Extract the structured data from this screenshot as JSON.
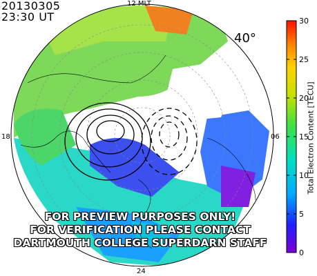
{
  "header": {
    "date": "20130305",
    "time": "23:30 UT",
    "latitude_label": "40°"
  },
  "mlt_labels": {
    "top": "12 MLT",
    "left": "18",
    "right": "06",
    "bottom": "24"
  },
  "watermark": {
    "line1": "FOR PREVIEW PURPOSES ONLY!",
    "line2": "FOR VERIFICATION PLEASE CONTACT",
    "line3": "DARTMOUTH COLLEGE SUPERDARN STAFF"
  },
  "chart_data": {
    "type": "heatmap",
    "projection": "polar",
    "colorbar": {
      "label": "Total Electron Content [TECU]",
      "range": [
        0,
        30
      ],
      "ticks": [
        0,
        5,
        10,
        15,
        20,
        25,
        30
      ],
      "colormap": [
        "#7b00d4",
        "#2020ff",
        "#00a8ff",
        "#00e0c0",
        "#40e040",
        "#c8e000",
        "#ffd000",
        "#ff8000",
        "#ff1000"
      ]
    },
    "magnetic_latitude_ring": 40,
    "mlt_ticks": [
      "12",
      "18",
      "06",
      "24"
    ],
    "convection_contours": "solid (dusk cell) and dashed (dawn cell) potential contours"
  }
}
